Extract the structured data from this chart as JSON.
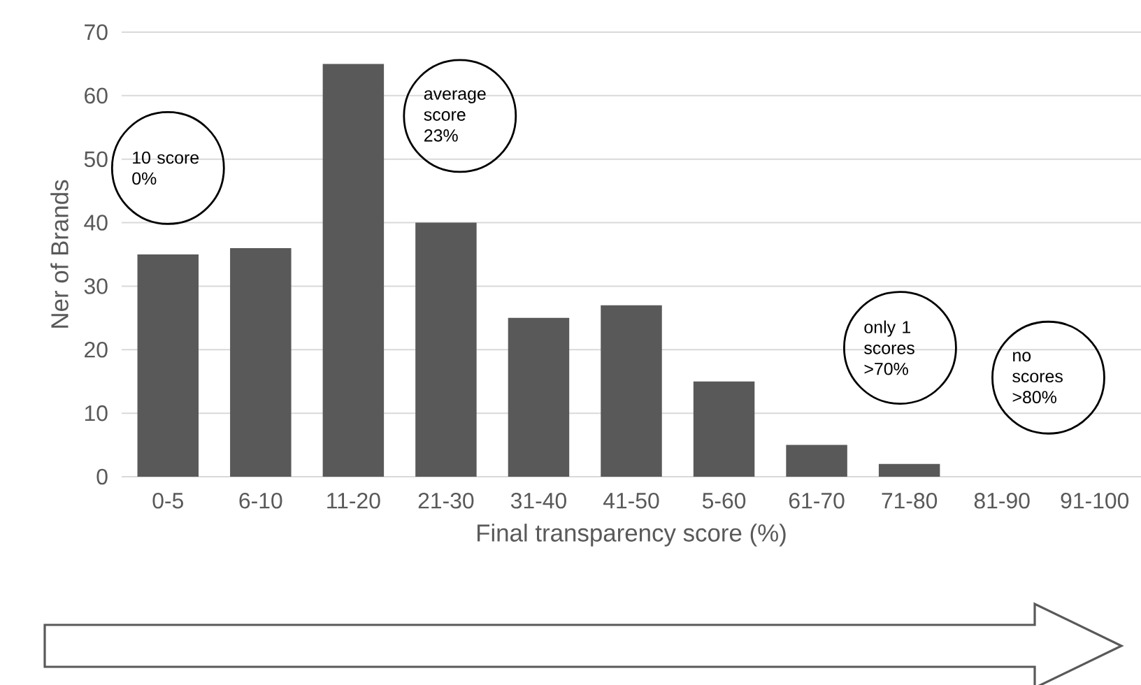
{
  "chart_data": {
    "type": "bar",
    "xlabel": "Final transparency score (%)",
    "ylabel": "Ner of Brands",
    "categories": [
      "0-5",
      "6-10",
      "11-20",
      "21-30",
      "31-40",
      "41-50",
      "5-60",
      "61-70",
      "71-80",
      "81-90",
      "91-100"
    ],
    "values": [
      35,
      36,
      65,
      40,
      25,
      27,
      15,
      5,
      2,
      0,
      0
    ],
    "color": "#595959",
    "ylim": [
      0,
      70
    ],
    "yticks": [
      0,
      10,
      20,
      30,
      40,
      50,
      60,
      70
    ],
    "grid": "y",
    "annotations": [
      "10 score 0%",
      "average score 23%",
      "only 1 scores >70%",
      "no scores >80%"
    ]
  }
}
